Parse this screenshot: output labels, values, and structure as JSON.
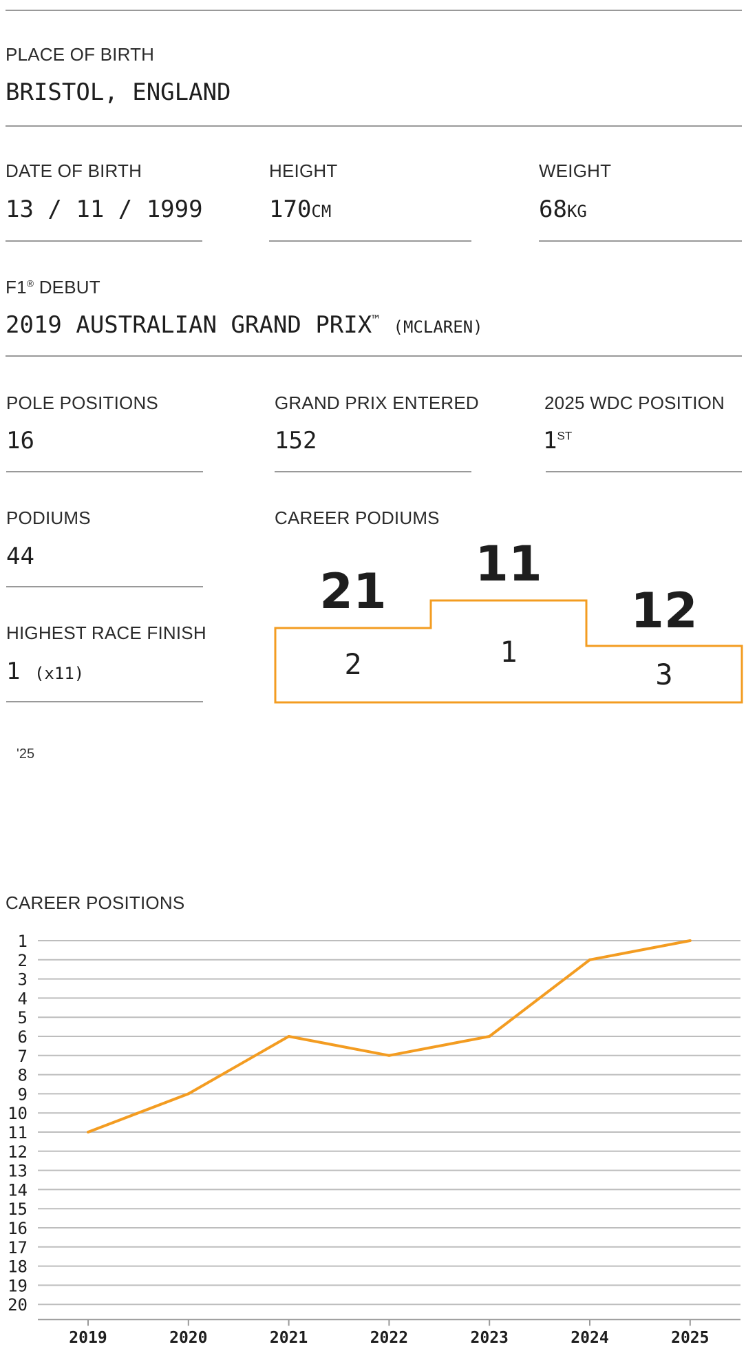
{
  "birth_place": {
    "label": "PLACE OF BIRTH",
    "value": "BRISTOL, ENGLAND"
  },
  "date_of_birth": {
    "label": "DATE OF BIRTH",
    "value": "13 / 11 / 1999"
  },
  "height": {
    "label": "HEIGHT",
    "value": "170",
    "unit": "CM"
  },
  "weight": {
    "label": "WEIGHT",
    "value": "68",
    "unit": "KG"
  },
  "debut": {
    "label_prefix": "F1",
    "label_mark": "®",
    "label_suffix": " DEBUT",
    "race": "2019 AUSTRALIAN GRAND PRIX",
    "tm": "™",
    "team": "(MCLAREN)"
  },
  "pole_positions": {
    "label": "POLE POSITIONS",
    "value": "16"
  },
  "grand_prix_entered": {
    "label": "GRAND PRIX ENTERED",
    "value": "152"
  },
  "wdc_position": {
    "label": "2025 WDC POSITION",
    "value": "1",
    "suffix": "ST"
  },
  "podiums": {
    "label": "PODIUMS",
    "value": "44"
  },
  "highest_finish": {
    "label": "HIGHEST RACE FINISH",
    "value": "1",
    "count": "(x11)"
  },
  "career_podiums": {
    "label": "CAREER PODIUMS",
    "steps": [
      {
        "position": "2",
        "count": "21"
      },
      {
        "position": "1",
        "count": "11"
      },
      {
        "position": "3",
        "count": "12"
      }
    ]
  },
  "season_tag": "'25",
  "accent_color": "#F39C21",
  "chart_data": {
    "type": "line",
    "title": "CAREER POSITIONS",
    "categories": [
      "2019",
      "2020",
      "2021",
      "2022",
      "2023",
      "2024",
      "2025"
    ],
    "series": [
      {
        "values": [
          11,
          9,
          6,
          7,
          6,
          2,
          1
        ]
      }
    ],
    "y_ticks": [
      "1",
      "2",
      "3",
      "4",
      "5",
      "6",
      "7",
      "8",
      "9",
      "10",
      "11",
      "12",
      "13",
      "14",
      "15",
      "16",
      "17",
      "18",
      "19",
      "20"
    ],
    "ylim": [
      1,
      20
    ],
    "y_inverted": true,
    "grid": true,
    "color": "#F39C21"
  }
}
